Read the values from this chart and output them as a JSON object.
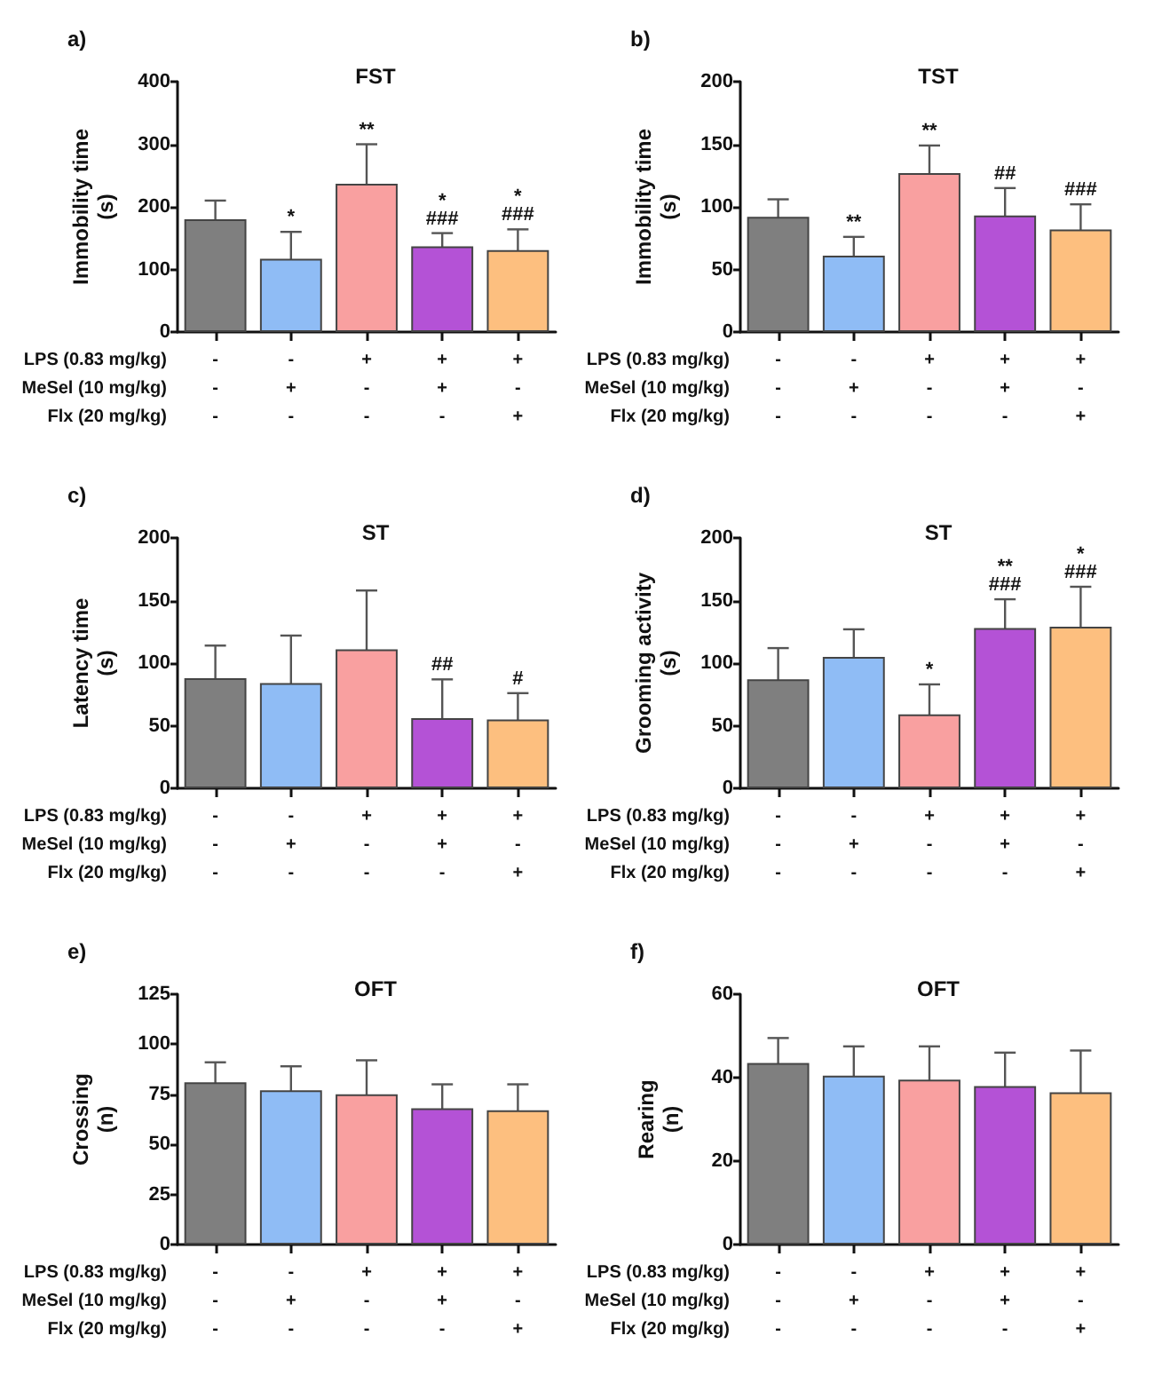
{
  "chart_data": [
    {
      "type": "bar",
      "title": "FST",
      "ylabel": "Immobility time\n(s)",
      "categories": [
        "-\n-\n-",
        "-\n+\n-",
        "+\n-\n-",
        "+\n+\n-",
        "+\n-\n+"
      ],
      "values": [
        180,
        117,
        237,
        137,
        131
      ],
      "errors": [
        30,
        43,
        63,
        21,
        33
      ],
      "colors": [
        "#7f7f7f",
        "#8fbcf5",
        "#f9a0a0",
        "#b452d6",
        "#fdbf7f"
      ],
      "ylim": [
        0,
        400
      ],
      "yticks": [
        0,
        100,
        200,
        300,
        400
      ],
      "annotations": [
        "a)",
        "LPS (0.83 mg/kg)",
        "MeSel (10 mg/kg)",
        "Flx (20 mg/kg)",
        {
          "text": "*",
          "x": "-\n+\n-",
          "y": 117
        },
        {
          "text": "**",
          "x": "+\n-\n-",
          "y": 237
        },
        {
          "text": "*\n###",
          "x": "+\n+\n-",
          "y": 137
        },
        {
          "text": "*\n###",
          "x": "+\n-\n+",
          "y": 131
        }
      ]
    },
    {
      "type": "bar",
      "title": "TST",
      "ylabel": "Immobility time\n(s)",
      "categories": [
        "-\n-\n-",
        "-\n+\n-",
        "+\n-\n-",
        "+\n+\n-",
        "+\n-\n+"
      ],
      "values": [
        92,
        61,
        127,
        93,
        82
      ],
      "errors": [
        14,
        15,
        22,
        22,
        20
      ],
      "colors": [
        "#7f7f7f",
        "#8fbcf5",
        "#f9a0a0",
        "#b452d6",
        "#fdbf7f"
      ],
      "ylim": [
        0,
        200
      ],
      "yticks": [
        0,
        50,
        100,
        150,
        200
      ],
      "annotations": [
        "b)",
        "LPS (0.83 mg/kg)",
        "MeSel (10 mg/kg)",
        "Flx (20 mg/kg)",
        {
          "text": "**",
          "x": "-\n+\n-",
          "y": 61
        },
        {
          "text": "**",
          "x": "+\n-\n-",
          "y": 127
        },
        {
          "text": "##",
          "x": "+\n+\n-",
          "y": 93
        },
        {
          "text": "###",
          "x": "+\n-\n+",
          "y": 82
        }
      ]
    },
    {
      "type": "bar",
      "title": "ST",
      "ylabel": "Latency time\n(s)",
      "categories": [
        "-\n-\n-",
        "-\n+\n-",
        "+\n-\n-",
        "+\n+\n-",
        "+\n-\n+"
      ],
      "values": [
        88,
        84,
        111,
        56,
        55
      ],
      "errors": [
        26,
        38,
        47,
        31,
        21
      ],
      "colors": [
        "#7f7f7f",
        "#8fbcf5",
        "#f9a0a0",
        "#b452d6",
        "#fdbf7f"
      ],
      "ylim": [
        0,
        200
      ],
      "yticks": [
        0,
        50,
        100,
        150,
        200
      ],
      "annotations": [
        "c)",
        "LPS (0.83 mg/kg)",
        "MeSel (10 mg/kg)",
        "Flx (20 mg/kg)",
        {
          "text": "##",
          "x": "+\n+\n-",
          "y": 56
        },
        {
          "text": "#",
          "x": "+\n-\n+",
          "y": 55
        }
      ]
    },
    {
      "type": "bar",
      "title": "ST",
      "ylabel": "Grooming activity\n(s)",
      "categories": [
        "-\n-\n-",
        "-\n+\n-",
        "+\n-\n-",
        "+\n+\n-",
        "+\n-\n+"
      ],
      "values": [
        87,
        105,
        59,
        128,
        129
      ],
      "errors": [
        25,
        22,
        24,
        23,
        32
      ],
      "colors": [
        "#7f7f7f",
        "#8fbcf5",
        "#f9a0a0",
        "#b452d6",
        "#fdbf7f"
      ],
      "ylim": [
        0,
        200
      ],
      "yticks": [
        0,
        50,
        100,
        150,
        200
      ],
      "annotations": [
        "d)",
        "LPS (0.83 mg/kg)",
        "MeSel (10 mg/kg)",
        "Flx (20 mg/kg)",
        {
          "text": "*",
          "x": "+\n-\n-",
          "y": 59
        },
        {
          "text": "**\n###",
          "x": "+\n+\n-",
          "y": 128
        },
        {
          "text": "*\n###",
          "x": "+\n-\n+",
          "y": 129
        }
      ]
    },
    {
      "type": "bar",
      "title": "OFT",
      "ylabel": "Crossing\n(n)",
      "categories": [
        "-\n-\n-",
        "-\n+\n-",
        "+\n-\n-",
        "+\n+\n-",
        "+\n-\n+"
      ],
      "values": [
        81,
        77,
        75,
        68,
        67
      ],
      "errors": [
        10,
        12,
        17,
        12,
        13
      ],
      "colors": [
        "#7f7f7f",
        "#8fbcf5",
        "#f9a0a0",
        "#b452d6",
        "#fdbf7f"
      ],
      "ylim": [
        0,
        125
      ],
      "yticks": [
        0,
        25,
        50,
        75,
        100,
        125
      ],
      "annotations": [
        "e)",
        "LPS (0.83 mg/kg)",
        "MeSel (10 mg/kg)",
        "Flx (20 mg/kg)"
      ]
    },
    {
      "type": "bar",
      "title": "OFT",
      "ylabel": "Rearing\n(n)",
      "categories": [
        "-\n-\n-",
        "-\n+\n-",
        "+\n-\n-",
        "+\n+\n-",
        "+\n-\n+"
      ],
      "values": [
        43.5,
        40.5,
        39.5,
        38,
        36.5
      ],
      "errors": [
        6,
        7,
        8,
        8,
        10
      ],
      "colors": [
        "#7f7f7f",
        "#8fbcf5",
        "#f9a0a0",
        "#b452d6",
        "#fdbf7f"
      ],
      "ylim": [
        0,
        60
      ],
      "yticks": [
        0,
        20,
        40,
        60
      ],
      "annotations": [
        "f)",
        "LPS (0.83 mg/kg)",
        "MeSel (10 mg/kg)",
        "Flx (20 mg/kg)"
      ]
    }
  ]
}
